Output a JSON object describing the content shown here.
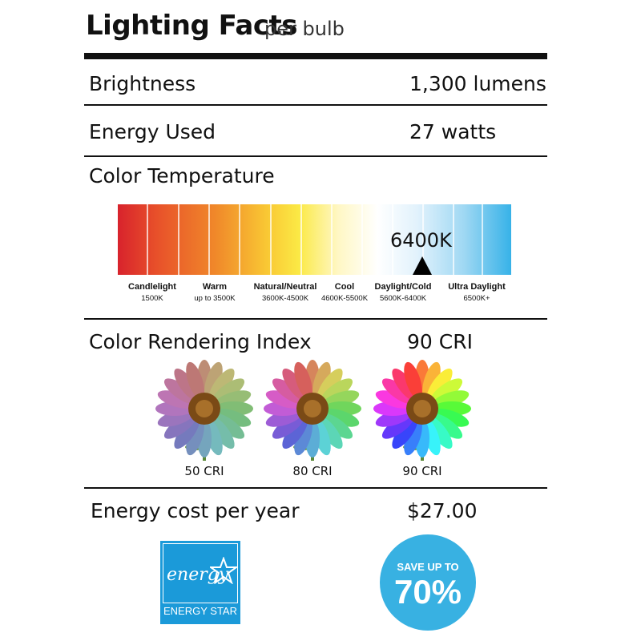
{
  "header": {
    "title": "Lighting Facts",
    "subtitle": "per bulb"
  },
  "rows": [
    {
      "label": "Brightness",
      "value": "1,300 lumens"
    },
    {
      "label": "Energy Used",
      "value": "27 watts"
    }
  ],
  "color_temperature": {
    "label": "Color Temperature",
    "marker": "6400K",
    "segments": [
      {
        "name": "Candlelight",
        "range": "1500K"
      },
      {
        "name": "Warm",
        "range": "up to 3500K"
      },
      {
        "name": "Natural/Neutral",
        "range": "3600K-4500K"
      },
      {
        "name": "Cool",
        "range": "4600K-5500K"
      },
      {
        "name": "Daylight/Cold",
        "range": "5600K-6400K"
      },
      {
        "name": "Ultra Daylight",
        "range": "6500K+"
      }
    ]
  },
  "cri": {
    "label": "Color Rendering Index",
    "value": "90 CRI",
    "samples": [
      "50 CRI",
      "80 CRI",
      "90 CRI"
    ]
  },
  "energy_cost": {
    "label": "Energy cost per year",
    "value": "$27.00"
  },
  "energy_star": {
    "logo_text": "energy",
    "label": "ENERGY STAR"
  },
  "badge": {
    "top": "SAVE UP TO",
    "big": "70%"
  }
}
